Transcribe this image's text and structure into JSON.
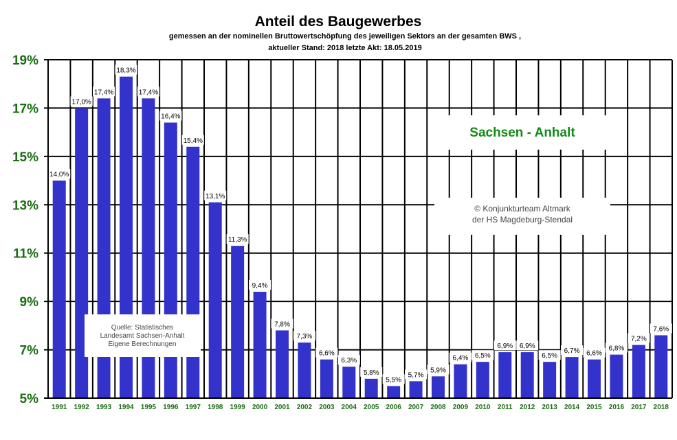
{
  "chart_data": {
    "type": "bar",
    "title": "Anteil des Baugewerbes",
    "subtitle_line1": "gemessen an der nominellen  Bruttowertschöpfung  des jeweiligen Sektors an der gesamten BWS ,",
    "subtitle_line2": "aktueller Stand:  2018 letzte  Akt: 18.05.2019",
    "region_label": "Sachsen - Anhalt",
    "copyright": [
      "© Konjunkturteam  Altmark",
      "der HS Magdeburg-Stendal"
    ],
    "source": [
      "Quelle: Statistisches",
      "Landesamt Sachsen-Anhalt",
      "Eigene Berechnungen"
    ],
    "categories": [
      "1991",
      "1992",
      "1993",
      "1994",
      "1995",
      "1996",
      "1997",
      "1998",
      "1999",
      "2000",
      "2001",
      "2002",
      "2003",
      "2004",
      "2005",
      "2006",
      "2007",
      "2008",
      "2009",
      "2010",
      "2011",
      "2012",
      "2013",
      "2014",
      "2015",
      "2016",
      "2017",
      "2018"
    ],
    "values": [
      14.0,
      17.0,
      17.4,
      18.3,
      17.4,
      16.4,
      15.4,
      13.1,
      11.3,
      9.4,
      7.8,
      7.3,
      6.6,
      6.3,
      5.8,
      5.5,
      5.7,
      5.9,
      6.4,
      6.5,
      6.9,
      6.9,
      6.5,
      6.7,
      6.6,
      6.8,
      7.2,
      7.6
    ],
    "data_labels": [
      "14,0%",
      "17,0%",
      "17,4%",
      "18,3%",
      "17,4%",
      "16,4%",
      "15,4%",
      "13,1%",
      "11,3%",
      "9,4%",
      "7,8%",
      "7,3%",
      "6,6%",
      "6,3%",
      "5,8%",
      "5,5%",
      "5,7%",
      "5,9%",
      "6,4%",
      "6,5%",
      "6,9%",
      "6,9%",
      "6,5%",
      "6,7%",
      "6,6%",
      "6,8%",
      "7,2%",
      "7,6%"
    ],
    "y_ticks": [
      5,
      7,
      9,
      11,
      13,
      15,
      17,
      19
    ],
    "y_tick_labels": [
      "5%",
      "7%",
      "9%",
      "11%",
      "13%",
      "15%",
      "17%",
      "19%"
    ],
    "ylim": [
      5,
      19
    ],
    "grid": true,
    "bar_color": "#3333cc",
    "tick_color": "#1a6d12",
    "region_color": "#138a17"
  }
}
